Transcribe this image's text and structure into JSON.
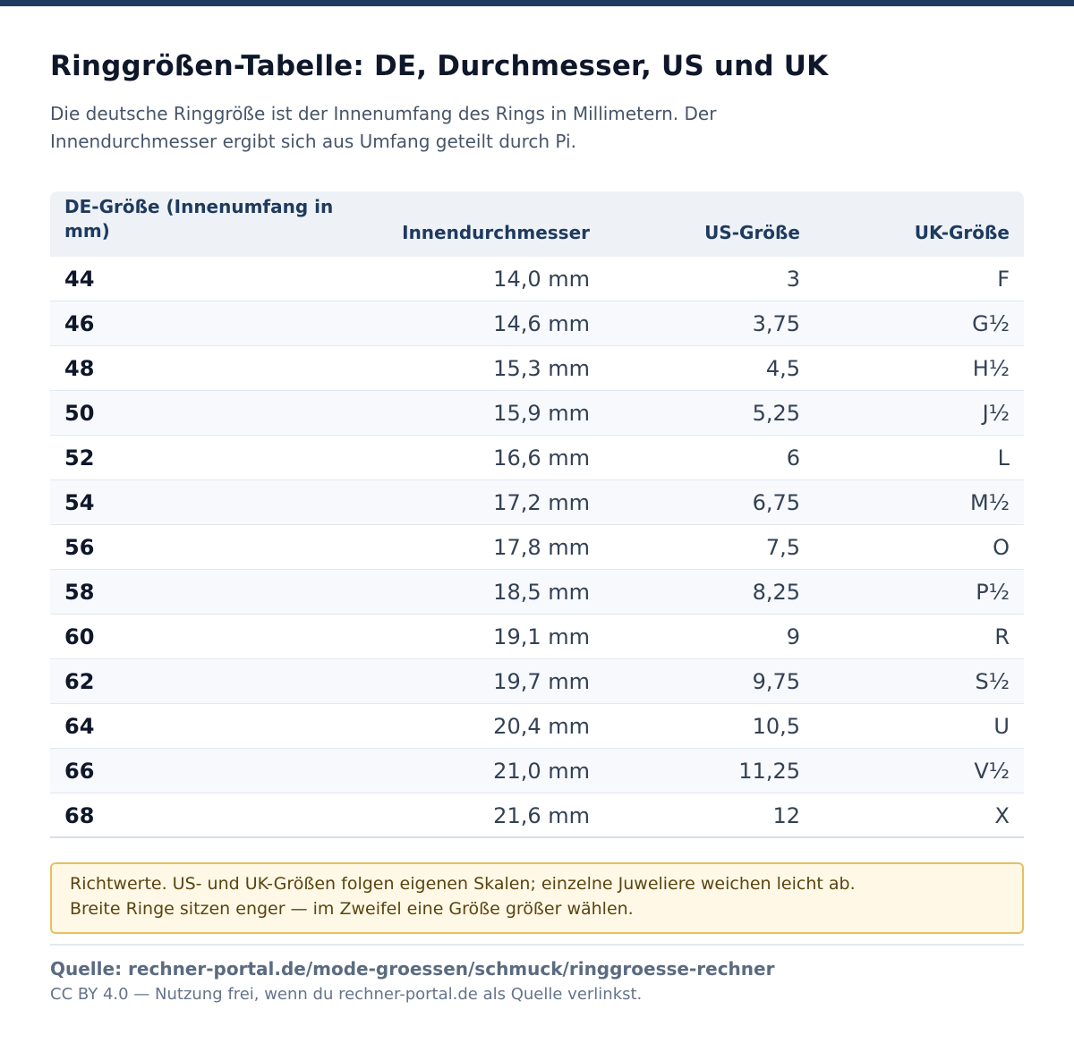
{
  "title": "Ringgrößen-Tabelle: DE, Durchmesser, US und UK",
  "subtitle": "Die deutsche Ringgröße ist der Innenumfang des Rings in Millimetern. Der Innendurchmesser ergibt sich aus Umfang geteilt durch Pi.",
  "table": {
    "headers": {
      "de": "DE-Größe (Innenumfang in mm)",
      "diameter": "Innendurchmesser",
      "us": "US-Größe",
      "uk": "UK-Größe"
    },
    "rows": [
      {
        "de": "44",
        "diameter": "14,0 mm",
        "us": "3",
        "uk": "F"
      },
      {
        "de": "46",
        "diameter": "14,6 mm",
        "us": "3,75",
        "uk": "G½"
      },
      {
        "de": "48",
        "diameter": "15,3 mm",
        "us": "4,5",
        "uk": "H½"
      },
      {
        "de": "50",
        "diameter": "15,9 mm",
        "us": "5,25",
        "uk": "J½"
      },
      {
        "de": "52",
        "diameter": "16,6 mm",
        "us": "6",
        "uk": "L"
      },
      {
        "de": "54",
        "diameter": "17,2 mm",
        "us": "6,75",
        "uk": "M½"
      },
      {
        "de": "56",
        "diameter": "17,8 mm",
        "us": "7,5",
        "uk": "O"
      },
      {
        "de": "58",
        "diameter": "18,5 mm",
        "us": "8,25",
        "uk": "P½"
      },
      {
        "de": "60",
        "diameter": "19,1 mm",
        "us": "9",
        "uk": "R"
      },
      {
        "de": "62",
        "diameter": "19,7 mm",
        "us": "9,75",
        "uk": "S½"
      },
      {
        "de": "64",
        "diameter": "20,4 mm",
        "us": "10,5",
        "uk": "U"
      },
      {
        "de": "66",
        "diameter": "21,0 mm",
        "us": "11,25",
        "uk": "V½"
      },
      {
        "de": "68",
        "diameter": "21,6 mm",
        "us": "12",
        "uk": "X"
      }
    ]
  },
  "note": "Richtwerte. US- und UK-Größen folgen eigenen Skalen; einzelne Juweliere weichen leicht ab. Breite Ringe sitzen enger — im Zweifel eine Größe größer wählen.",
  "source": "Quelle: rechner-portal.de/mode-groessen/schmuck/ringgroesse-rechner",
  "license": "CC BY 4.0 — Nutzung frei, wenn du rechner-portal.de als Quelle verlinkst."
}
